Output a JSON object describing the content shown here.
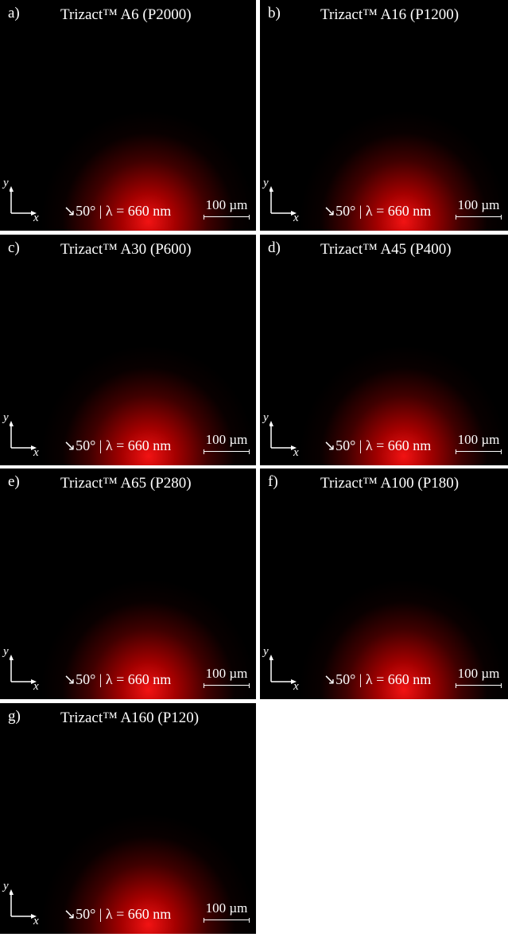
{
  "panels": [
    {
      "label": "a)",
      "title": "Trizact™ A6 (P2000)",
      "annotation": "↘50° | λ = 660 nm",
      "scale": "100 µm",
      "x_axis": "x",
      "y_axis": "y"
    },
    {
      "label": "b)",
      "title": "Trizact™ A16 (P1200)",
      "annotation": "↘50° | λ = 660 nm",
      "scale": "100 µm",
      "x_axis": "x",
      "y_axis": "y"
    },
    {
      "label": "c)",
      "title": "Trizact™ A30 (P600)",
      "annotation": "↘50° | λ = 660 nm",
      "scale": "100 µm",
      "x_axis": "x",
      "y_axis": "y"
    },
    {
      "label": "d)",
      "title": "Trizact™ A45 (P400)",
      "annotation": "↘50° | λ = 660 nm",
      "scale": "100 µm",
      "x_axis": "x",
      "y_axis": "y"
    },
    {
      "label": "e)",
      "title": "Trizact™ A65 (P280)",
      "annotation": "↘50° | λ = 660 nm",
      "scale": "100 µm",
      "x_axis": "x",
      "y_axis": "y"
    },
    {
      "label": "f)",
      "title": "Trizact™ A100 (P180)",
      "annotation": "↘50° | λ = 660 nm",
      "scale": "100 µm",
      "x_axis": "x",
      "y_axis": "y"
    },
    {
      "label": "g)",
      "title": "Trizact™ A160 (P120)",
      "annotation": "↘50° | λ = 660 nm",
      "scale": "100 µm",
      "x_axis": "x",
      "y_axis": "y"
    }
  ]
}
